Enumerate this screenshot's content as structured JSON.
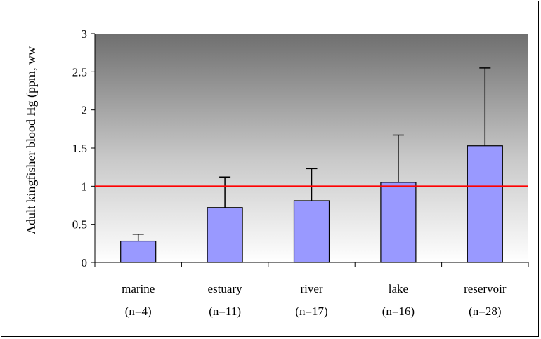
{
  "chart_data": {
    "type": "bar",
    "title": "",
    "xlabel": "",
    "ylabel": "Adult kingfisher blood Hg (ppm, ww",
    "ylim": [
      0,
      3
    ],
    "yticks": [
      "0",
      "0.5",
      "1",
      "1.5",
      "2",
      "2.5",
      "3"
    ],
    "categories": [
      {
        "name": "marine",
        "n": "(n=4)"
      },
      {
        "name": "estuary",
        "n": "(n=11)"
      },
      {
        "name": "river",
        "n": "(n=17)"
      },
      {
        "name": "lake",
        "n": "(n=16)"
      },
      {
        "name": "reservoir",
        "n": "(n=28)"
      }
    ],
    "values": [
      0.28,
      0.72,
      0.81,
      1.05,
      1.53
    ],
    "error_upper": [
      0.37,
      1.12,
      1.23,
      1.67,
      2.55
    ],
    "reference_line": 1.0,
    "grid": false,
    "legend": "none",
    "colors": {
      "bar_fill": "#9999ff",
      "bar_stroke": "#000000",
      "reference_line": "#ff0000",
      "plot_gradient_top": "#6f6f6f",
      "plot_gradient_bottom": "#ffffff"
    }
  }
}
